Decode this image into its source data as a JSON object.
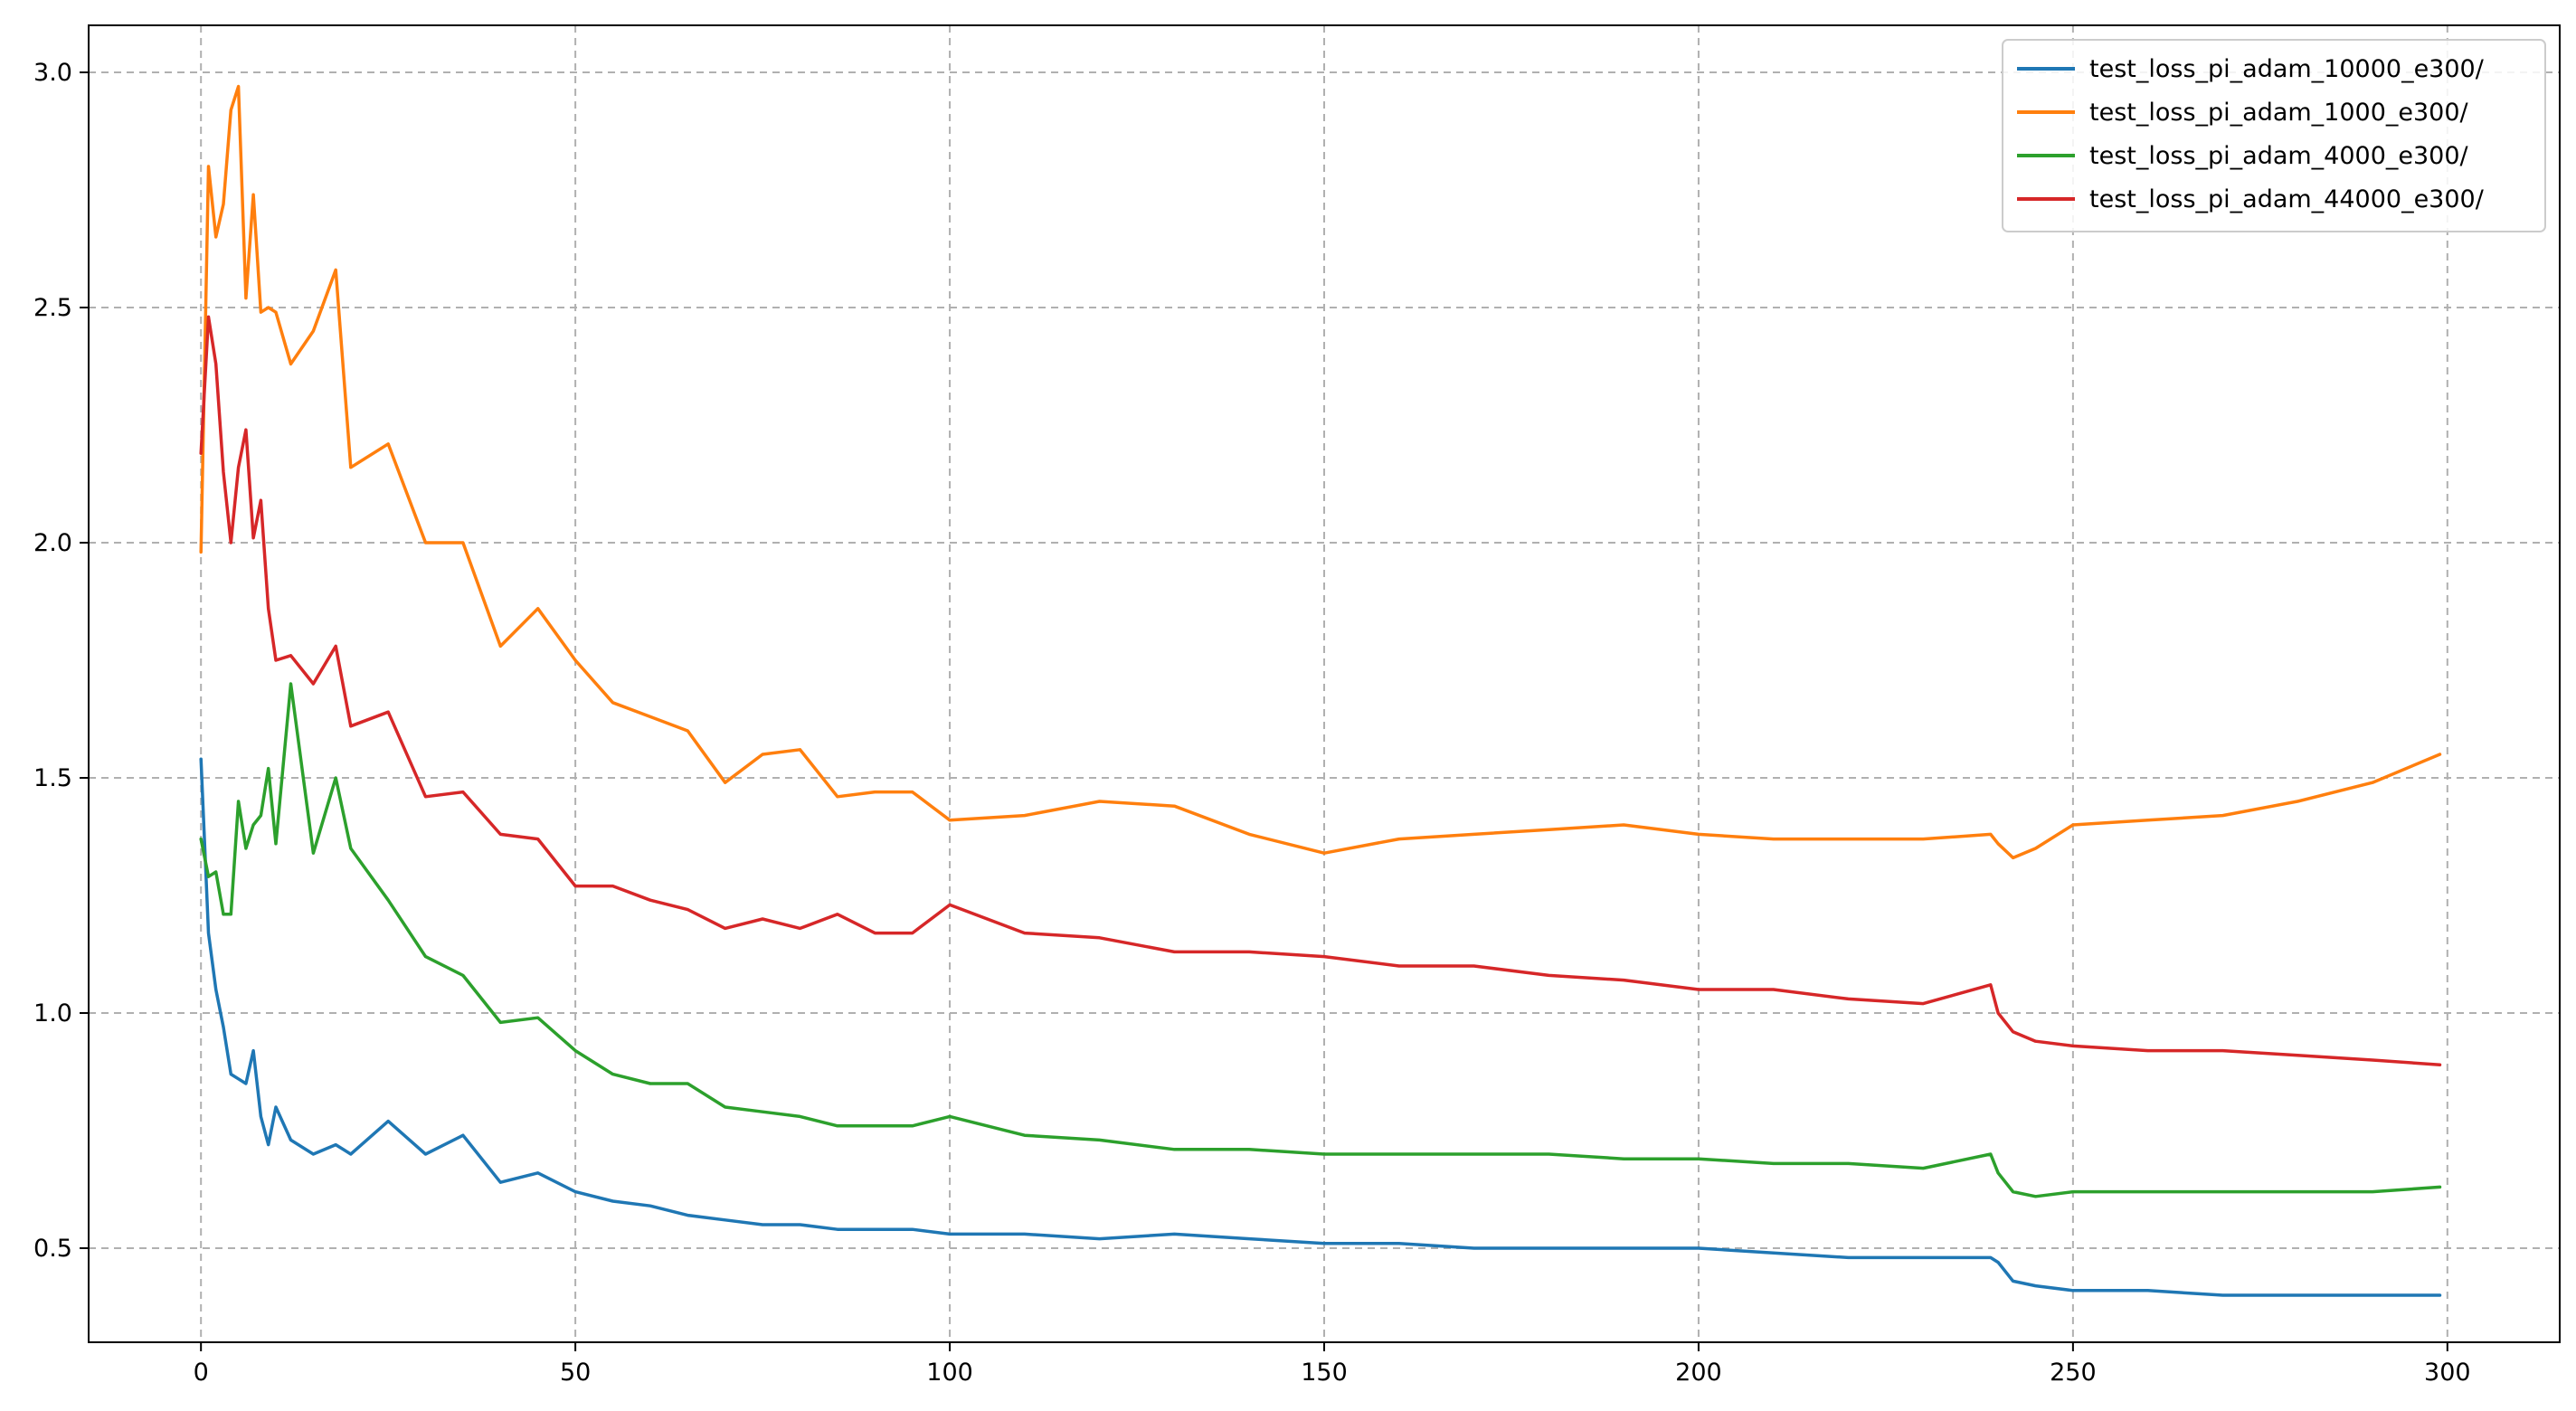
{
  "chart_data": {
    "type": "line",
    "title": "",
    "xlabel": "",
    "ylabel": "",
    "xlim": [
      -15,
      315
    ],
    "ylim": [
      0.3,
      3.1
    ],
    "xticks": [
      0,
      50,
      100,
      150,
      200,
      250,
      300
    ],
    "xtick_labels": [
      "0",
      "50",
      "100",
      "150",
      "200",
      "250",
      "300"
    ],
    "yticks": [
      0.5,
      1.0,
      1.5,
      2.0,
      2.5,
      3.0
    ],
    "ytick_labels": [
      "0.5",
      "1.0",
      "1.5",
      "2.0",
      "2.5",
      "3.0"
    ],
    "grid": true,
    "legend_position": "top-right",
    "x": [
      0,
      1,
      2,
      3,
      4,
      5,
      6,
      7,
      8,
      9,
      10,
      12,
      15,
      18,
      20,
      25,
      30,
      35,
      40,
      45,
      50,
      55,
      60,
      65,
      70,
      75,
      80,
      85,
      90,
      95,
      100,
      110,
      120,
      130,
      140,
      150,
      160,
      170,
      180,
      190,
      200,
      210,
      220,
      230,
      239,
      240,
      242,
      245,
      250,
      260,
      270,
      280,
      290,
      299
    ],
    "series": [
      {
        "name": "test_loss_pi_adam_10000_e300/",
        "color": "#1f77b4",
        "values": [
          1.54,
          1.17,
          1.05,
          0.97,
          0.87,
          0.86,
          0.85,
          0.92,
          0.78,
          0.72,
          0.8,
          0.73,
          0.7,
          0.72,
          0.7,
          0.77,
          0.7,
          0.74,
          0.64,
          0.66,
          0.62,
          0.6,
          0.59,
          0.57,
          0.56,
          0.55,
          0.55,
          0.54,
          0.54,
          0.54,
          0.53,
          0.53,
          0.52,
          0.53,
          0.52,
          0.51,
          0.51,
          0.5,
          0.5,
          0.5,
          0.5,
          0.49,
          0.48,
          0.48,
          0.48,
          0.47,
          0.43,
          0.42,
          0.41,
          0.41,
          0.4,
          0.4,
          0.4,
          0.4
        ]
      },
      {
        "name": "test_loss_pi_adam_1000_e300/",
        "color": "#ff7f0e",
        "values": [
          1.98,
          2.8,
          2.65,
          2.72,
          2.92,
          2.97,
          2.52,
          2.74,
          2.49,
          2.5,
          2.49,
          2.38,
          2.45,
          2.58,
          2.16,
          2.21,
          2.0,
          2.0,
          1.78,
          1.86,
          1.75,
          1.66,
          1.63,
          1.6,
          1.49,
          1.55,
          1.56,
          1.46,
          1.47,
          1.47,
          1.41,
          1.42,
          1.45,
          1.44,
          1.38,
          1.34,
          1.37,
          1.38,
          1.39,
          1.4,
          1.38,
          1.37,
          1.37,
          1.37,
          1.38,
          1.36,
          1.33,
          1.35,
          1.4,
          1.41,
          1.42,
          1.45,
          1.49,
          1.55
        ]
      },
      {
        "name": "test_loss_pi_adam_4000_e300/",
        "color": "#2ca02c",
        "values": [
          1.37,
          1.29,
          1.3,
          1.21,
          1.21,
          1.45,
          1.35,
          1.4,
          1.42,
          1.52,
          1.36,
          1.7,
          1.34,
          1.5,
          1.35,
          1.24,
          1.12,
          1.08,
          0.98,
          0.99,
          0.92,
          0.87,
          0.85,
          0.85,
          0.8,
          0.79,
          0.78,
          0.76,
          0.76,
          0.76,
          0.78,
          0.74,
          0.73,
          0.71,
          0.71,
          0.7,
          0.7,
          0.7,
          0.7,
          0.69,
          0.69,
          0.68,
          0.68,
          0.67,
          0.7,
          0.66,
          0.62,
          0.61,
          0.62,
          0.62,
          0.62,
          0.62,
          0.62,
          0.63
        ]
      },
      {
        "name": "test_loss_pi_adam_44000_e300/",
        "color": "#d62728",
        "values": [
          2.19,
          2.48,
          2.38,
          2.15,
          2.0,
          2.16,
          2.24,
          2.01,
          2.09,
          1.86,
          1.75,
          1.76,
          1.7,
          1.78,
          1.61,
          1.64,
          1.46,
          1.47,
          1.38,
          1.37,
          1.27,
          1.27,
          1.24,
          1.22,
          1.18,
          1.2,
          1.18,
          1.21,
          1.17,
          1.17,
          1.23,
          1.17,
          1.16,
          1.13,
          1.13,
          1.12,
          1.1,
          1.1,
          1.08,
          1.07,
          1.05,
          1.05,
          1.03,
          1.02,
          1.06,
          1.0,
          0.96,
          0.94,
          0.93,
          0.92,
          0.92,
          0.91,
          0.9,
          0.89
        ]
      }
    ]
  }
}
